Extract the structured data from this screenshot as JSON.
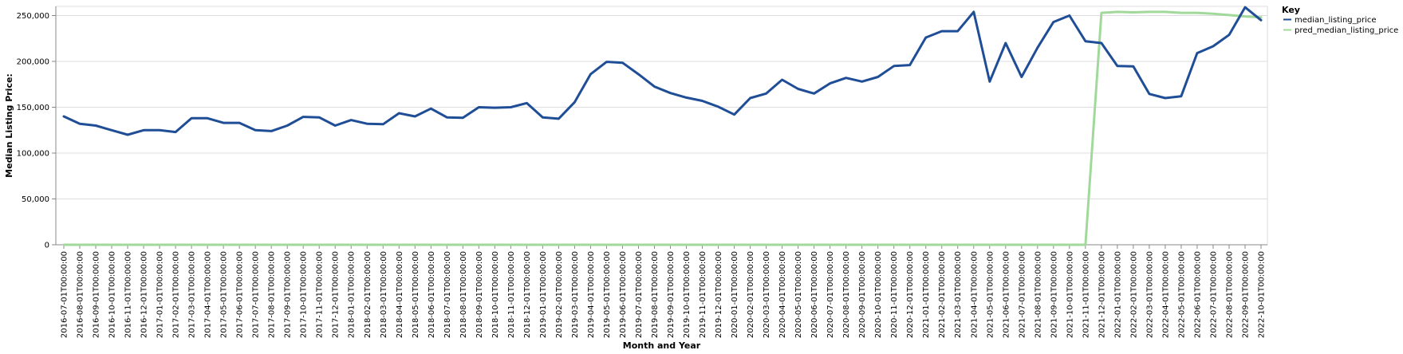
{
  "chart_data": {
    "type": "line",
    "xlabel": "Month and Year",
    "ylabel": "Median Listing Price:",
    "ylim": [
      0,
      260000
    ],
    "yticks": [
      0,
      50000,
      100000,
      150000,
      200000,
      250000
    ],
    "ytick_labels": [
      "0",
      "50,000",
      "100,000",
      "150,000",
      "200,000",
      "250,000"
    ],
    "grid": true,
    "legend": {
      "title": "Key",
      "placement": "top-right"
    },
    "x": [
      "2016-07-01T00:00:00",
      "2016-08-01T00:00:00",
      "2016-09-01T00:00:00",
      "2016-10-01T00:00:00",
      "2016-11-01T00:00:00",
      "2016-12-01T00:00:00",
      "2017-01-01T00:00:00",
      "2017-02-01T00:00:00",
      "2017-03-01T00:00:00",
      "2017-04-01T00:00:00",
      "2017-05-01T00:00:00",
      "2017-06-01T00:00:00",
      "2017-07-01T00:00:00",
      "2017-08-01T00:00:00",
      "2017-09-01T00:00:00",
      "2017-10-01T00:00:00",
      "2017-11-01T00:00:00",
      "2017-12-01T00:00:00",
      "2018-01-01T00:00:00",
      "2018-02-01T00:00:00",
      "2018-03-01T00:00:00",
      "2018-04-01T00:00:00",
      "2018-05-01T00:00:00",
      "2018-06-01T00:00:00",
      "2018-07-01T00:00:00",
      "2018-08-01T00:00:00",
      "2018-09-01T00:00:00",
      "2018-10-01T00:00:00",
      "2018-11-01T00:00:00",
      "2018-12-01T00:00:00",
      "2019-01-01T00:00:00",
      "2019-02-01T00:00:00",
      "2019-03-01T00:00:00",
      "2019-04-01T00:00:00",
      "2019-05-01T00:00:00",
      "2019-06-01T00:00:00",
      "2019-07-01T00:00:00",
      "2019-08-01T00:00:00",
      "2019-09-01T00:00:00",
      "2019-10-01T00:00:00",
      "2019-11-01T00:00:00",
      "2019-12-01T00:00:00",
      "2020-01-01T00:00:00",
      "2020-02-01T00:00:00",
      "2020-03-01T00:00:00",
      "2020-04-01T00:00:00",
      "2020-05-01T00:00:00",
      "2020-06-01T00:00:00",
      "2020-07-01T00:00:00",
      "2020-08-01T00:00:00",
      "2020-09-01T00:00:00",
      "2020-10-01T00:00:00",
      "2020-11-01T00:00:00",
      "2020-12-01T00:00:00",
      "2021-01-01T00:00:00",
      "2021-02-01T00:00:00",
      "2021-03-01T00:00:00",
      "2021-04-01T00:00:00",
      "2021-05-01T00:00:00",
      "2021-06-01T00:00:00",
      "2021-07-01T00:00:00",
      "2021-08-01T00:00:00",
      "2021-09-01T00:00:00",
      "2021-10-01T00:00:00",
      "2021-11-01T00:00:00",
      "2021-12-01T00:00:00",
      "2022-01-01T00:00:00",
      "2022-02-01T00:00:00",
      "2022-03-01T00:00:00",
      "2022-04-01T00:00:00",
      "2022-05-01T00:00:00",
      "2022-06-01T00:00:00",
      "2022-07-01T00:00:00",
      "2022-08-01T00:00:00",
      "2022-09-01T00:00:00",
      "2022-10-01T00:00:00"
    ],
    "series": [
      {
        "name": "median_listing_price",
        "color": "#1f4e96",
        "values": [
          140000,
          132000,
          130000,
          125000,
          120000,
          125000,
          125000,
          123000,
          138000,
          138000,
          133000,
          133000,
          125000,
          124000,
          130000,
          139500,
          139000,
          130000,
          136000,
          132000,
          131500,
          143500,
          140000,
          148500,
          139000,
          138500,
          150000,
          149500,
          150000,
          154500,
          139000,
          137500,
          155500,
          186000,
          199500,
          198500,
          186000,
          172500,
          165500,
          160500,
          157000,
          150500,
          142000,
          160000,
          165000,
          180000,
          170000,
          165000,
          176000,
          182000,
          178000,
          183000,
          195000,
          196000,
          226000,
          233000,
          233000,
          254000,
          178000,
          220000,
          183000,
          215000,
          243000,
          250000,
          222000,
          220000,
          195000,
          194500,
          164500,
          160000,
          162000,
          209000,
          216500,
          229000,
          259000,
          245000
        ]
      },
      {
        "name": "pred_median_listing_price",
        "color": "#a1d99b",
        "values": [
          0,
          0,
          0,
          0,
          0,
          0,
          0,
          0,
          0,
          0,
          0,
          0,
          0,
          0,
          0,
          0,
          0,
          0,
          0,
          0,
          0,
          0,
          0,
          0,
          0,
          0,
          0,
          0,
          0,
          0,
          0,
          0,
          0,
          0,
          0,
          0,
          0,
          0,
          0,
          0,
          0,
          0,
          0,
          0,
          0,
          0,
          0,
          0,
          0,
          0,
          0,
          0,
          0,
          0,
          0,
          0,
          0,
          0,
          0,
          0,
          0,
          0,
          0,
          0,
          0,
          253000,
          254000,
          253500,
          254000,
          254000,
          253000,
          253000,
          252000,
          250500,
          249000,
          248000
        ]
      }
    ]
  }
}
